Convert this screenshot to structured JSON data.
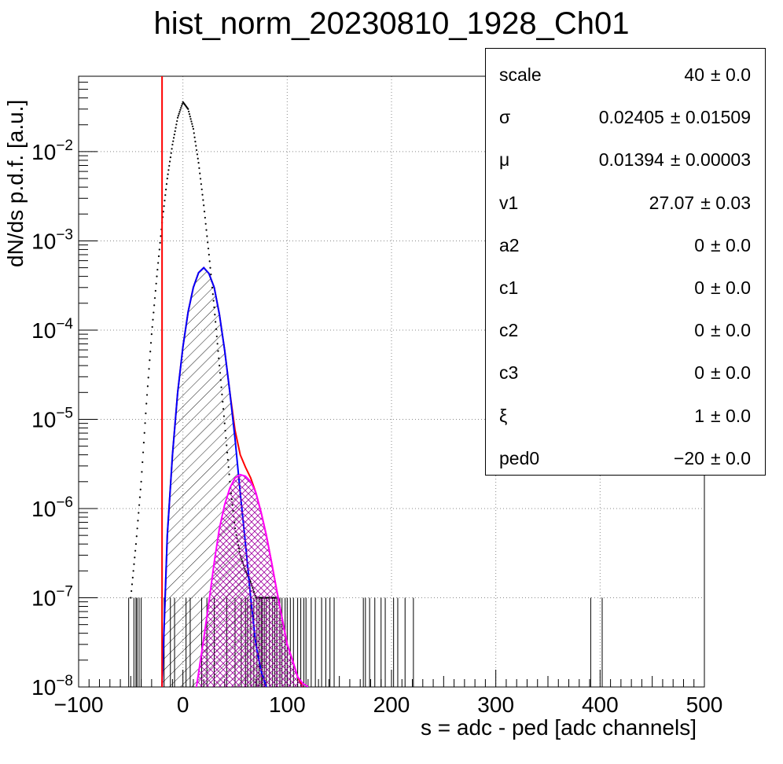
{
  "chart_data": {
    "type": "line",
    "title": "hist_norm_20230810_1928_Ch01",
    "xlabel": "s = adc - ped [adc channels]",
    "ylabel": "dN/ds p.d.f. [a.u.]",
    "xlim": [
      -100,
      500
    ],
    "ylim": [
      1e-08,
      0.07
    ],
    "yscale": "log",
    "grid": true,
    "x_ticks": [
      -100,
      0,
      100,
      200,
      300,
      400,
      500
    ],
    "y_ticks": [
      {
        "value": 1e-08,
        "label_base": "10",
        "label_exp": "−8"
      },
      {
        "value": 1e-07,
        "label_base": "10",
        "label_exp": "−7"
      },
      {
        "value": 1e-06,
        "label_base": "10",
        "label_exp": "−6"
      },
      {
        "value": 1e-05,
        "label_base": "10",
        "label_exp": "−5"
      },
      {
        "value": 0.0001,
        "label_base": "10",
        "label_exp": "−4"
      },
      {
        "value": 0.001,
        "label_base": "10",
        "label_exp": "−3"
      },
      {
        "value": 0.01,
        "label_base": "10",
        "label_exp": "−2"
      }
    ],
    "series": [
      {
        "style": "points",
        "color": "#000000",
        "x": [
          -50,
          -45,
          -40,
          -35,
          -30,
          -25,
          -20,
          -15,
          -10,
          -5,
          0,
          5,
          10,
          15,
          20,
          25,
          30,
          35,
          40,
          45,
          50,
          55,
          60,
          65,
          70,
          75,
          80,
          85,
          90
        ],
        "y": [
          1e-07,
          4e-07,
          2e-06,
          1.5e-05,
          9e-05,
          0.0004,
          0.0016,
          0.005,
          0.012,
          0.024,
          0.036,
          0.03,
          0.018,
          0.0075,
          0.0025,
          0.0007,
          0.00018,
          4e-05,
          9e-06,
          2e-06,
          6e-07,
          3e-07,
          2e-07,
          1.5e-07,
          1e-07,
          1e-07,
          1e-07,
          1e-07,
          1e-07
        ]
      },
      {
        "style": "line",
        "color": "#ff0000",
        "x": [
          -20,
          -15,
          -10,
          -5,
          0,
          5,
          10,
          15,
          20,
          25,
          30,
          35,
          40,
          45,
          50,
          55,
          60,
          65,
          70,
          75,
          80,
          85,
          90,
          95,
          100,
          105,
          110,
          115
        ],
        "y": [
          1e-08,
          5e-07,
          4e-06,
          2e-05,
          6.5e-05,
          0.00016,
          0.0003,
          0.00044,
          0.0005,
          0.00043,
          0.0003,
          0.00015,
          6e-05,
          2e-05,
          7.5e-06,
          4e-06,
          2.9e-06,
          2.2e-06,
          1.5e-06,
          9e-07,
          5e-07,
          2.5e-07,
          1.2e-07,
          6e-08,
          3e-08,
          2e-08,
          1.3e-08,
          1e-08
        ]
      },
      {
        "style": "line",
        "color": "#0000ff",
        "fill": "hatch",
        "x": [
          -20,
          -15,
          -10,
          -5,
          0,
          5,
          10,
          15,
          20,
          25,
          30,
          35,
          40,
          45,
          50,
          55,
          60,
          65,
          70,
          75,
          80
        ],
        "y": [
          1e-08,
          5e-07,
          4e-06,
          2e-05,
          6.5e-05,
          0.00016,
          0.0003,
          0.00044,
          0.0005,
          0.00043,
          0.0003,
          0.00015,
          6e-05,
          2e-05,
          6e-06,
          1.5e-06,
          4e-07,
          1e-07,
          3e-08,
          1.5e-08,
          1e-08
        ]
      },
      {
        "style": "line",
        "color": "#ff00ff",
        "fill": "crosshatch",
        "x": [
          13,
          20,
          25,
          30,
          35,
          40,
          45,
          50,
          55,
          60,
          65,
          70,
          75,
          80,
          85,
          90,
          95,
          100,
          105,
          110,
          115,
          120
        ],
        "y": [
          1e-08,
          3.5e-08,
          9e-08,
          2.5e-07,
          6e-07,
          1.1e-06,
          1.7e-06,
          2.2e-06,
          2.4e-06,
          2.3e-06,
          2e-06,
          1.5e-06,
          9e-07,
          5e-07,
          2.5e-07,
          1.2e-07,
          6e-08,
          3e-08,
          2e-08,
          1.3e-08,
          1.1e-08,
          1e-08
        ]
      }
    ],
    "vertical_line": {
      "x": -20,
      "color": "#ff0000"
    },
    "single_entry_bins": [
      -52,
      -47,
      -45,
      -44,
      -42,
      -40,
      -20,
      -18,
      -12,
      -8,
      3,
      7,
      18,
      23,
      30,
      42,
      50,
      56,
      60,
      62,
      65,
      68,
      71,
      73,
      75,
      76,
      78,
      80,
      83,
      86,
      88,
      90,
      93,
      95,
      98,
      100,
      103,
      106,
      110,
      113,
      116,
      118,
      123,
      127,
      133,
      137,
      141,
      145,
      173,
      175,
      179,
      184,
      190,
      194,
      202,
      206,
      213,
      221,
      391,
      402
    ],
    "stats": [
      {
        "name": "scale",
        "value": "40",
        "error": "± 0.0"
      },
      {
        "name": "σ",
        "value": "0.02405",
        "error": "± 0.01509"
      },
      {
        "name": "μ",
        "value": "0.01394",
        "error": "± 0.00003"
      },
      {
        "name": "v1",
        "value": "27.07",
        "error": "± 0.03"
      },
      {
        "name": "a2",
        "value": "0",
        "error": "± 0.0"
      },
      {
        "name": "c1",
        "value": "0",
        "error": "± 0.0"
      },
      {
        "name": "c2",
        "value": "0",
        "error": "± 0.0"
      },
      {
        "name": "c3",
        "value": "0",
        "error": "± 0.0"
      },
      {
        "name": "ξ",
        "value": "1",
        "error": "± 0.0"
      },
      {
        "name": "ped0",
        "value": "−20",
        "error": "± 0.0"
      }
    ]
  }
}
